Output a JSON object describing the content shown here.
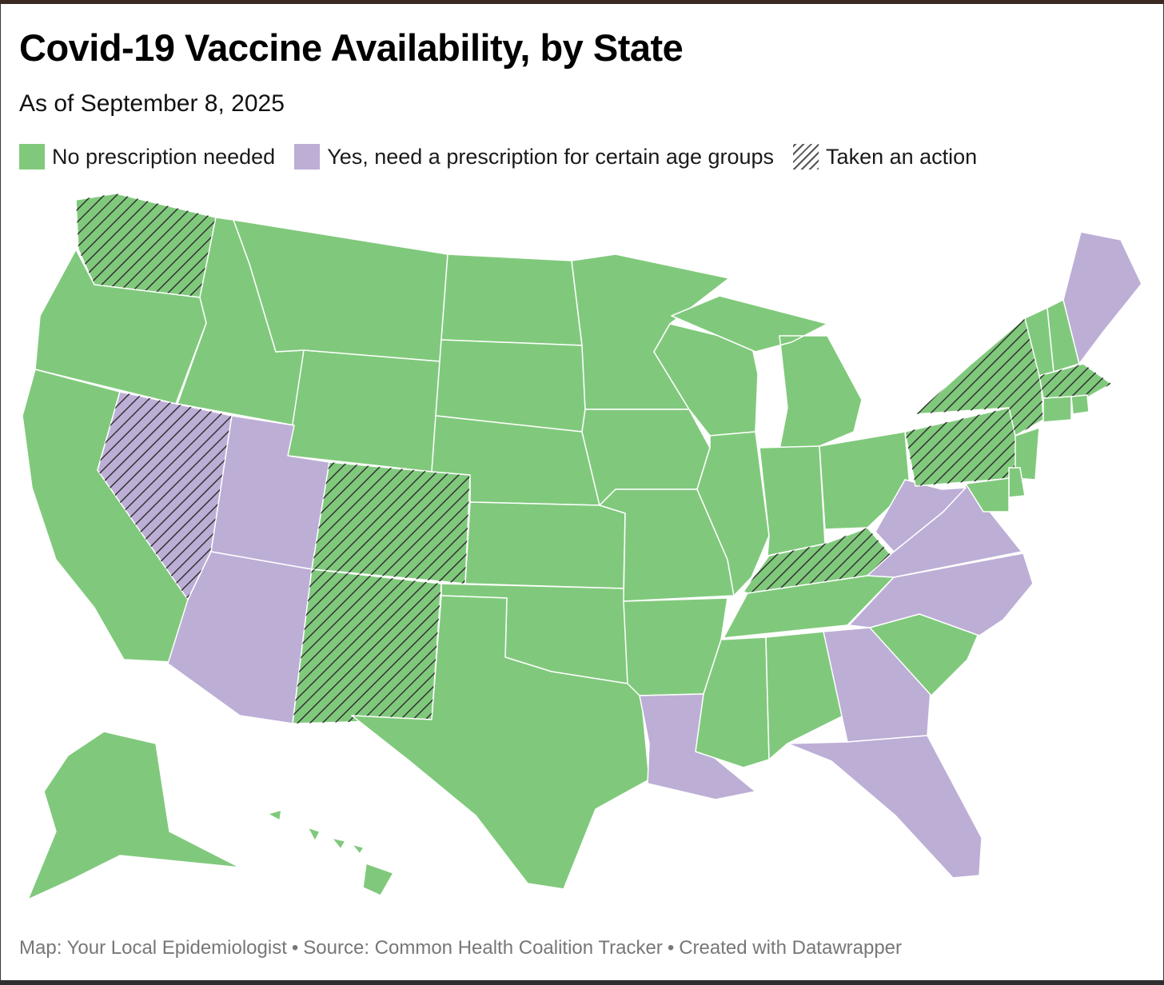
{
  "title": "Covid-19 Vaccine Availability, by State",
  "subtitle": "As of September 8, 2025",
  "colors": {
    "no_prescription": "#80c97c",
    "prescription": "#bdaed6",
    "hatch_line": "#333333"
  },
  "legend": [
    {
      "label": "No prescription needed",
      "style": "green"
    },
    {
      "label": "Yes, need a prescription for certain age groups",
      "style": "purple"
    },
    {
      "label": "Taken an action",
      "style": "hatch"
    }
  ],
  "footer": {
    "map_credit": "Map: Your Local Epidemiologist",
    "source": "Source: Common Health Coalition Tracker",
    "tool": "Created with Datawrapper",
    "separator": "•"
  },
  "map_data": {
    "no_prescription_needed": [
      "WA",
      "OR",
      "CA",
      "ID",
      "MT",
      "WY",
      "CO",
      "NM",
      "TX",
      "OK",
      "KS",
      "NE",
      "SD",
      "ND",
      "MN",
      "IA",
      "MO",
      "AR",
      "WI",
      "IL",
      "MI",
      "IN",
      "OH",
      "KY",
      "TN",
      "MS",
      "AL",
      "SC",
      "PA",
      "NY",
      "NJ",
      "DE",
      "MD",
      "CT",
      "RI",
      "MA",
      "VT",
      "NH",
      "AK",
      "HI"
    ],
    "prescription_required_certain_ages": [
      "NV",
      "UT",
      "AZ",
      "LA",
      "GA",
      "FL",
      "VA",
      "WV",
      "NC",
      "ME"
    ],
    "taken_an_action": [
      "WA",
      "NV",
      "CO",
      "NM",
      "NY",
      "PA",
      "KY",
      "MA"
    ]
  }
}
